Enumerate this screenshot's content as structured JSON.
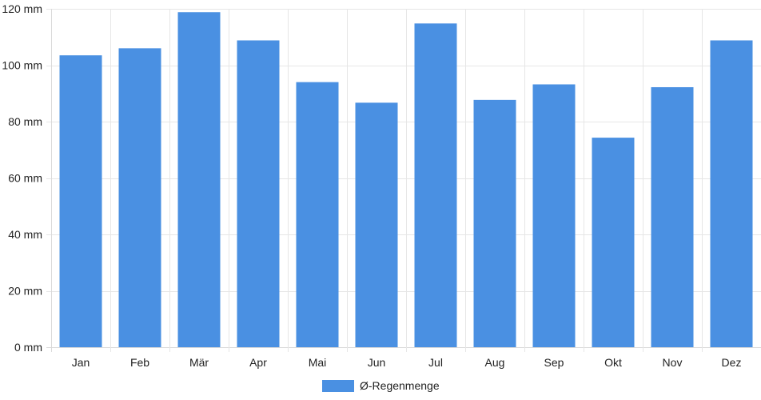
{
  "chart_data": {
    "type": "bar",
    "categories": [
      "Jan",
      "Feb",
      "Mär",
      "Apr",
      "Mai",
      "Jun",
      "Jul",
      "Aug",
      "Sep",
      "Okt",
      "Nov",
      "Dez"
    ],
    "series": [
      {
        "name": "Ø-Regenmenge",
        "values": [
          103.5,
          106,
          118.8,
          108.8,
          94,
          86.7,
          114.8,
          87.7,
          93.2,
          74.3,
          92.2,
          108.8
        ],
        "color": "#4a90e2"
      }
    ],
    "yticks": [
      "0 mm",
      "20 mm",
      "40 mm",
      "60 mm",
      "80 mm",
      "100 mm",
      "120 mm"
    ],
    "ylim": [
      0,
      120
    ],
    "ytick_step": 20,
    "grid": true,
    "legend_position": "bottom-center",
    "colors": {
      "bar": "#4a90e2",
      "grid": "#e6e6e6",
      "axis": "#d9d9d9",
      "text": "#222222"
    }
  }
}
